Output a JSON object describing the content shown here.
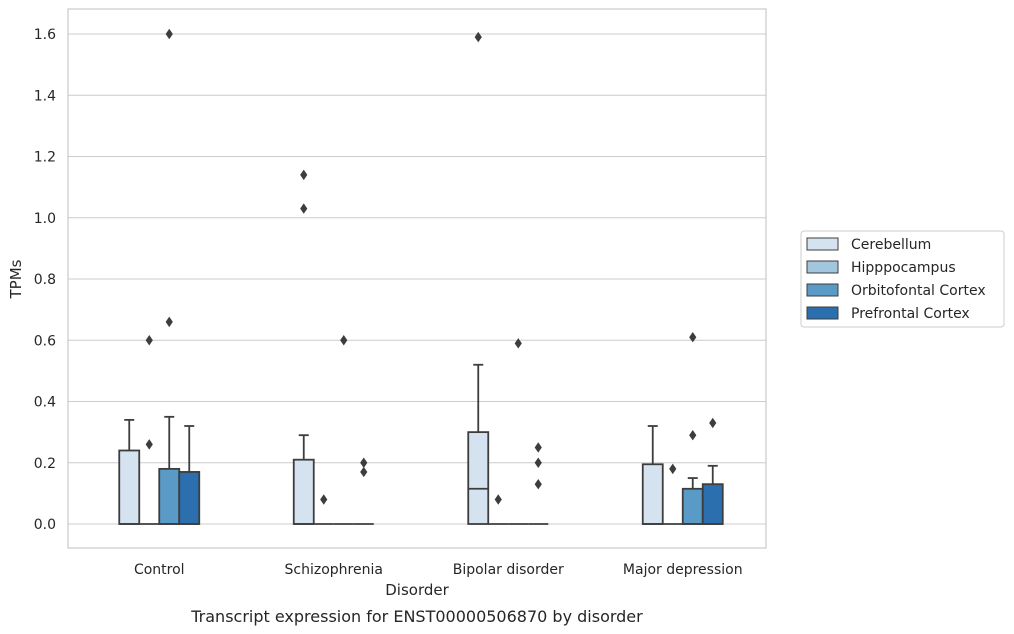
{
  "chart_data": {
    "type": "box",
    "xlabel": "Disorder",
    "ylabel": "TPMs",
    "caption": "Transcript expression for ENST00000506870 by disorder",
    "ylim": [
      -0.08,
      1.68
    ],
    "yticks": [
      "0.0",
      "0.2",
      "0.4",
      "0.6",
      "0.8",
      "1.0",
      "1.2",
      "1.4",
      "1.6"
    ],
    "grid": "horizontal",
    "legend_position": "right",
    "categories": [
      "Control",
      "Schizophrenia",
      "Bipolar disorder",
      "Major depression"
    ],
    "series": [
      {
        "name": "Cerebellum",
        "color": "#d5e2f0",
        "boxes": [
          {
            "q1": 0.0,
            "median": 0.0,
            "q3": 0.24,
            "whisker_low": 0.0,
            "whisker_high": 0.34,
            "outliers": []
          },
          {
            "q1": 0.0,
            "median": 0.0,
            "q3": 0.21,
            "whisker_low": 0.0,
            "whisker_high": 0.29,
            "outliers": [
              1.14,
              1.03
            ]
          },
          {
            "q1": 0.0,
            "median": 0.115,
            "q3": 0.3,
            "whisker_low": 0.0,
            "whisker_high": 0.52,
            "outliers": [
              1.59
            ]
          },
          {
            "q1": 0.0,
            "median": 0.0,
            "q3": 0.195,
            "whisker_low": 0.0,
            "whisker_high": 0.32,
            "outliers": []
          }
        ]
      },
      {
        "name": "Hipppocampus",
        "color": "#a3c6df",
        "boxes": [
          {
            "q1": 0.0,
            "median": 0.0,
            "q3": 0.0,
            "whisker_low": 0.0,
            "whisker_high": 0.0,
            "outliers": [
              0.6,
              0.26
            ]
          },
          {
            "q1": 0.0,
            "median": 0.0,
            "q3": 0.0,
            "whisker_low": 0.0,
            "whisker_high": 0.0,
            "outliers": [
              0.08
            ]
          },
          {
            "q1": 0.0,
            "median": 0.0,
            "q3": 0.0,
            "whisker_low": 0.0,
            "whisker_high": 0.0,
            "outliers": [
              0.08
            ]
          },
          {
            "q1": 0.0,
            "median": 0.0,
            "q3": 0.0,
            "whisker_low": 0.0,
            "whisker_high": 0.0,
            "outliers": [
              0.18
            ]
          }
        ]
      },
      {
        "name": "Orbitofontal Cortex",
        "color": "#5a9ac7",
        "boxes": [
          {
            "q1": 0.0,
            "median": 0.0,
            "q3": 0.18,
            "whisker_low": 0.0,
            "whisker_high": 0.35,
            "outliers": [
              1.6,
              0.66
            ]
          },
          {
            "q1": 0.0,
            "median": 0.0,
            "q3": 0.0,
            "whisker_low": 0.0,
            "whisker_high": 0.0,
            "outliers": [
              0.6
            ]
          },
          {
            "q1": 0.0,
            "median": 0.0,
            "q3": 0.0,
            "whisker_low": 0.0,
            "whisker_high": 0.0,
            "outliers": [
              0.59
            ]
          },
          {
            "q1": 0.0,
            "median": 0.0,
            "q3": 0.115,
            "whisker_low": 0.0,
            "whisker_high": 0.15,
            "outliers": [
              0.61,
              0.29
            ]
          }
        ]
      },
      {
        "name": "Prefrontal Cortex",
        "color": "#2c6fae",
        "boxes": [
          {
            "q1": 0.0,
            "median": 0.0,
            "q3": 0.17,
            "whisker_low": 0.0,
            "whisker_high": 0.32,
            "outliers": []
          },
          {
            "q1": 0.0,
            "median": 0.0,
            "q3": 0.0,
            "whisker_low": 0.0,
            "whisker_high": 0.0,
            "outliers": [
              0.2,
              0.17
            ]
          },
          {
            "q1": 0.0,
            "median": 0.0,
            "q3": 0.0,
            "whisker_low": 0.0,
            "whisker_high": 0.0,
            "outliers": [
              0.25,
              0.2,
              0.13
            ]
          },
          {
            "q1": 0.0,
            "median": 0.0,
            "q3": 0.13,
            "whisker_low": 0.0,
            "whisker_high": 0.19,
            "outliers": [
              0.33
            ]
          }
        ]
      }
    ]
  }
}
